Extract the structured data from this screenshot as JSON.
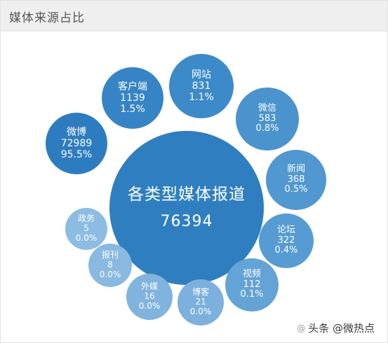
{
  "panel": {
    "title": "媒体来源占比"
  },
  "bubbles": {
    "total": {
      "label": "各类型媒体报道",
      "count": "76394",
      "color": "#2f7fc0"
    },
    "weibo": {
      "label": "微博",
      "count": "72989",
      "pct": "95.5%",
      "color": "#2e7cc0"
    },
    "kehuduan": {
      "label": "客户端",
      "count": "1139",
      "pct": "1.5%",
      "color": "#3684c6"
    },
    "wangzhan": {
      "label": "网站",
      "count": "831",
      "pct": "1.1%",
      "color": "#3d8ac9"
    },
    "weixin": {
      "label": "微信",
      "count": "583",
      "pct": "0.8%",
      "color": "#4a93cd"
    },
    "xinwen": {
      "label": "新闻",
      "count": "368",
      "pct": "0.5%",
      "color": "#5198d0"
    },
    "luntan": {
      "label": "论坛",
      "count": "322",
      "pct": "0.4%",
      "color": "#569cd2"
    },
    "shipin": {
      "label": "视频",
      "count": "112",
      "pct": "0.1%",
      "color": "#64a3d5"
    },
    "boke": {
      "label": "博客",
      "count": "21",
      "pct": "0.0%",
      "color": "#7db1dd"
    },
    "waimei": {
      "label": "外媒",
      "count": "16",
      "pct": "0.0%",
      "color": "#80b4de"
    },
    "baokan": {
      "label": "报刊",
      "count": "8",
      "pct": "0.0%",
      "color": "#89b9e0"
    },
    "zhengwu": {
      "label": "政务",
      "count": "5",
      "pct": "0.0%",
      "color": "#8dbce2"
    }
  },
  "watermark": {
    "text": "头条 @微热点",
    "icon": "at-icon"
  }
}
